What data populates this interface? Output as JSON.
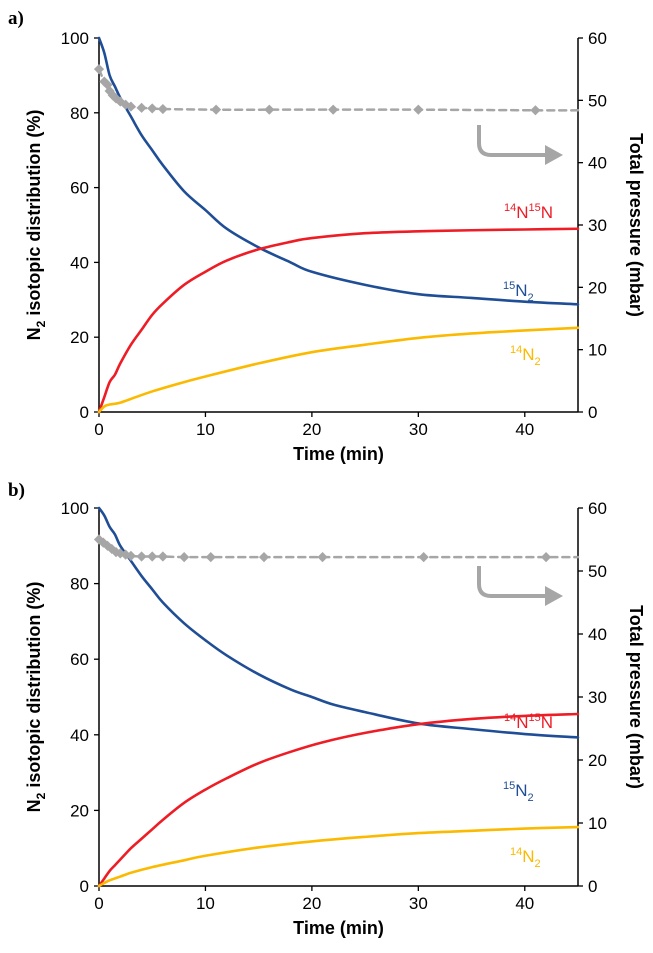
{
  "chart_data": [
    {
      "panel": "a)",
      "type": "line",
      "xlabel": "Time (min)",
      "ylabel_left_main": "N",
      "ylabel_left_sub": "2",
      "ylabel_left_rest": " isotopic distribution (%)",
      "ylabel_right": "Total pressure (mbar)",
      "xlim": [
        0,
        45
      ],
      "ylim": [
        0,
        100
      ],
      "ylim_right": [
        0,
        60
      ],
      "x_ticks": [
        0,
        10,
        20,
        30,
        40
      ],
      "y_ticks": [
        0,
        20,
        40,
        60,
        80,
        100
      ],
      "y_right_ticks": [
        0,
        10,
        20,
        30,
        40,
        50,
        60
      ],
      "series": [
        {
          "name": "15N2",
          "label_sup": "15",
          "label_main": "N",
          "label_sub": "2",
          "color": "#1f4e96",
          "axis": "left",
          "x": [
            0,
            0.5,
            1,
            1.5,
            2,
            3,
            4,
            5,
            6,
            8,
            10,
            12,
            15,
            18,
            20,
            25,
            30,
            35,
            40,
            45
          ],
          "y": [
            100,
            96,
            90,
            87,
            84,
            79,
            74,
            70,
            66,
            59,
            54,
            49,
            44,
            40,
            37.5,
            34,
            31.5,
            30.5,
            29.5,
            28.8
          ]
        },
        {
          "name": "14N15N",
          "label_sup1": "14",
          "label_mid": "N",
          "label_sup2": "15",
          "label_end": "N",
          "color": "#ee1c25",
          "axis": "left",
          "x": [
            0,
            0.5,
            1,
            1.5,
            2,
            3,
            4,
            5,
            6,
            8,
            10,
            12,
            15,
            18,
            20,
            25,
            30,
            35,
            40,
            45
          ],
          "y": [
            0,
            4,
            8,
            10,
            13,
            18,
            22,
            26,
            29,
            34,
            37.5,
            40.5,
            43.5,
            45.5,
            46.5,
            47.8,
            48.3,
            48.6,
            48.8,
            49
          ]
        },
        {
          "name": "14N2",
          "label_sup": "14",
          "label_main": "N",
          "label_sub": "2",
          "color": "#fbb900",
          "axis": "left",
          "x": [
            0,
            0.5,
            1,
            1.5,
            2,
            3,
            5,
            8,
            10,
            15,
            20,
            25,
            30,
            35,
            40,
            45
          ],
          "y": [
            0,
            1.5,
            2,
            2.2,
            2.5,
            3.5,
            5.5,
            8,
            9.5,
            13,
            16,
            18,
            19.8,
            21,
            21.8,
            22.5
          ]
        },
        {
          "name": "Total pressure",
          "color": "#a6a6a6",
          "axis": "right",
          "dashed": true,
          "x": [
            0,
            0.5,
            0.8,
            1,
            1.3,
            1.6,
            2,
            2.5,
            3,
            4,
            5,
            6,
            11,
            16,
            22,
            30,
            41,
            45
          ],
          "y": [
            55,
            53,
            52.5,
            51.5,
            50.8,
            50.3,
            49.8,
            49.3,
            49,
            48.8,
            48.7,
            48.6,
            48.5,
            48.5,
            48.5,
            48.5,
            48.4,
            48.4
          ],
          "marker_x": [
            0,
            0.5,
            0.8,
            1,
            1.3,
            1.6,
            2,
            2.5,
            3,
            4,
            5,
            6,
            11,
            16,
            22,
            30,
            41
          ]
        }
      ]
    },
    {
      "panel": "b)",
      "type": "line",
      "xlabel": "Time (min)",
      "ylabel_left_main": "N",
      "ylabel_left_sub": "2",
      "ylabel_left_rest": " isotopic distribution  (%)",
      "ylabel_right": "Total pressure (mbar)",
      "xlim": [
        0,
        45
      ],
      "ylim": [
        0,
        100
      ],
      "ylim_right": [
        0,
        60
      ],
      "x_ticks": [
        0,
        10,
        20,
        30,
        40
      ],
      "y_ticks": [
        0,
        20,
        40,
        60,
        80,
        100
      ],
      "y_right_ticks": [
        0,
        10,
        20,
        30,
        40,
        50,
        60
      ],
      "series": [
        {
          "name": "15N2",
          "label_sup": "15",
          "label_main": "N",
          "label_sub": "2",
          "color": "#1f4e96",
          "axis": "left",
          "x": [
            0,
            0.5,
            1,
            1.5,
            2,
            3,
            4,
            5,
            6,
            8,
            10,
            12,
            15,
            18,
            20,
            22,
            25,
            30,
            35,
            40,
            45
          ],
          "y": [
            100,
            98,
            95,
            93,
            90,
            86,
            82,
            78.5,
            75,
            69.5,
            65,
            61,
            56,
            52,
            50,
            48,
            46,
            43,
            41.5,
            40.2,
            39.3
          ]
        },
        {
          "name": "14N15N",
          "label_sup1": "14",
          "label_mid": "N",
          "label_sup2": "15",
          "label_end": "N",
          "color": "#ee1c25",
          "axis": "left",
          "x": [
            0,
            0.5,
            1,
            1.5,
            2,
            3,
            4,
            5,
            6,
            8,
            10,
            12,
            15,
            18,
            21,
            25,
            30,
            35,
            40,
            45
          ],
          "y": [
            0,
            2,
            4,
            5.5,
            7,
            10,
            12.5,
            15,
            17.5,
            22,
            25.5,
            28.5,
            32.5,
            35.5,
            38,
            40.5,
            42.8,
            44.2,
            45,
            45.5
          ]
        },
        {
          "name": "14N2",
          "label_sup": "14",
          "label_main": "N",
          "label_sub": "2",
          "color": "#fbb900",
          "axis": "left",
          "x": [
            0,
            0.5,
            1,
            2,
            3,
            5,
            8,
            10,
            15,
            20,
            25,
            30,
            35,
            40,
            45
          ],
          "y": [
            0,
            0.8,
            1.5,
            2.5,
            3.5,
            5,
            6.8,
            8,
            10.2,
            11.8,
            13,
            14,
            14.6,
            15.2,
            15.6
          ]
        },
        {
          "name": "Total pressure",
          "color": "#a6a6a6",
          "axis": "right",
          "dashed": true,
          "x": [
            0,
            0.4,
            0.8,
            1.2,
            1.6,
            2,
            2.5,
            3,
            4,
            5,
            6,
            8,
            10.5,
            15.5,
            21,
            30.5,
            42,
            45
          ],
          "y": [
            55,
            54.5,
            54,
            53.5,
            53,
            52.8,
            52.6,
            52.4,
            52.3,
            52.3,
            52.3,
            52.2,
            52.2,
            52.2,
            52.2,
            52.2,
            52.2,
            52.2
          ],
          "marker_x": [
            0,
            0.4,
            0.8,
            1.2,
            1.6,
            2,
            2.5,
            3,
            4,
            5,
            6,
            8,
            10.5,
            15.5,
            21,
            30.5,
            42
          ]
        }
      ]
    }
  ]
}
